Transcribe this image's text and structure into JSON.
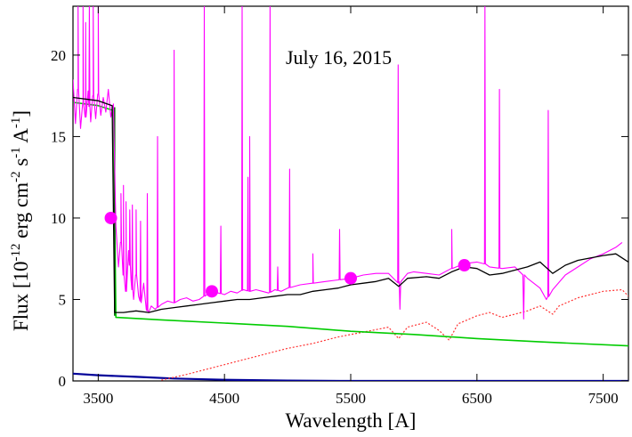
{
  "chart_data": {
    "type": "line",
    "title": "July 16, 2015",
    "xlabel": "Wavelength [A]",
    "ylabel_parts": {
      "main": "Flux [10",
      "exp1": "-12",
      "mid1": " erg cm",
      "exp2": "-2",
      "mid2": " s",
      "exp3": "-1",
      "mid3": " A",
      "exp4": "-1",
      "end": "]"
    },
    "xlim": [
      3300,
      7700
    ],
    "ylim": [
      0,
      23
    ],
    "xticks": [
      3500,
      4500,
      5500,
      6500,
      7500
    ],
    "yticks": [
      0,
      5,
      10,
      15,
      20
    ],
    "colors": {
      "observed": "#ff00ff",
      "model_total": "#000000",
      "hot_component": "#00cc00",
      "dark_green_edge": "#006400",
      "cool_giant": "#ff3333",
      "dust_component": "#000099",
      "photometry": "#ff00ff"
    },
    "series": [
      {
        "key": "hot_component",
        "points": [
          [
            3300,
            17.1
          ],
          [
            3500,
            16.9
          ],
          [
            3620,
            16.6
          ],
          [
            3640,
            3.9
          ],
          [
            4000,
            3.75
          ],
          [
            4500,
            3.55
          ],
          [
            5000,
            3.35
          ],
          [
            5500,
            3.05
          ],
          [
            6000,
            2.85
          ],
          [
            6500,
            2.6
          ],
          [
            7000,
            2.4
          ],
          [
            7700,
            2.15
          ]
        ]
      },
      {
        "key": "dust_component",
        "points": [
          [
            3300,
            0.45
          ],
          [
            3500,
            0.35
          ],
          [
            3800,
            0.25
          ],
          [
            4100,
            0.15
          ],
          [
            4500,
            0.07
          ],
          [
            5000,
            0.02
          ],
          [
            5500,
            0.0
          ],
          [
            7700,
            0.0
          ]
        ]
      },
      {
        "key": "cool_giant",
        "points": [
          [
            4000,
            0.05
          ],
          [
            4200,
            0.4
          ],
          [
            4400,
            0.8
          ],
          [
            4600,
            1.2
          ],
          [
            4800,
            1.6
          ],
          [
            5000,
            2.0
          ],
          [
            5200,
            2.3
          ],
          [
            5400,
            2.7
          ],
          [
            5600,
            3.0
          ],
          [
            5800,
            3.3
          ],
          [
            5880,
            2.6
          ],
          [
            5950,
            3.3
          ],
          [
            6100,
            3.6
          ],
          [
            6200,
            3.1
          ],
          [
            6280,
            2.5
          ],
          [
            6350,
            3.5
          ],
          [
            6500,
            4.0
          ],
          [
            6600,
            4.2
          ],
          [
            6700,
            3.9
          ],
          [
            6800,
            4.1
          ],
          [
            6900,
            4.3
          ],
          [
            7000,
            4.6
          ],
          [
            7100,
            4.1
          ],
          [
            7150,
            4.6
          ],
          [
            7300,
            5.1
          ],
          [
            7500,
            5.5
          ],
          [
            7650,
            5.6
          ],
          [
            7700,
            5.2
          ]
        ]
      },
      {
        "key": "model_total",
        "points": [
          [
            3300,
            17.4
          ],
          [
            3500,
            17.2
          ],
          [
            3610,
            16.9
          ],
          [
            3630,
            4.2
          ],
          [
            3700,
            4.2
          ],
          [
            3800,
            4.3
          ],
          [
            3900,
            4.2
          ],
          [
            4000,
            4.4
          ],
          [
            4100,
            4.5
          ],
          [
            4200,
            4.6
          ],
          [
            4300,
            4.7
          ],
          [
            4400,
            4.8
          ],
          [
            4500,
            4.9
          ],
          [
            4600,
            5.0
          ],
          [
            4700,
            5.0
          ],
          [
            4800,
            5.1
          ],
          [
            4900,
            5.2
          ],
          [
            5000,
            5.3
          ],
          [
            5100,
            5.3
          ],
          [
            5200,
            5.5
          ],
          [
            5300,
            5.6
          ],
          [
            5400,
            5.7
          ],
          [
            5500,
            5.9
          ],
          [
            5600,
            6.0
          ],
          [
            5700,
            6.1
          ],
          [
            5800,
            6.3
          ],
          [
            5880,
            5.8
          ],
          [
            5950,
            6.3
          ],
          [
            6100,
            6.4
          ],
          [
            6200,
            6.3
          ],
          [
            6300,
            6.7
          ],
          [
            6400,
            7.0
          ],
          [
            6500,
            6.9
          ],
          [
            6600,
            6.5
          ],
          [
            6700,
            6.6
          ],
          [
            6800,
            6.8
          ],
          [
            6900,
            7.0
          ],
          [
            7000,
            7.3
          ],
          [
            7100,
            6.6
          ],
          [
            7200,
            7.1
          ],
          [
            7300,
            7.4
          ],
          [
            7500,
            7.7
          ],
          [
            7600,
            7.8
          ],
          [
            7700,
            7.3
          ]
        ]
      },
      {
        "key": "observed",
        "points": [
          [
            3300,
            18.5
          ],
          [
            3320,
            15.8
          ],
          [
            3340,
            17.9
          ],
          [
            3360,
            15.5
          ],
          [
            3380,
            17.0
          ],
          [
            3400,
            16.2
          ],
          [
            3420,
            17.8
          ],
          [
            3440,
            15.9
          ],
          [
            3460,
            17.5
          ],
          [
            3480,
            16.1
          ],
          [
            3500,
            17.6
          ],
          [
            3520,
            16.3
          ],
          [
            3540,
            17.4
          ],
          [
            3560,
            16.5
          ],
          [
            3580,
            17.9
          ],
          [
            3600,
            16.2
          ],
          [
            3620,
            17.0
          ],
          [
            3640,
            9.5
          ],
          [
            3660,
            7.0
          ],
          [
            3680,
            8.5
          ],
          [
            3700,
            6.5
          ],
          [
            3720,
            5.5
          ],
          [
            3740,
            8.0
          ],
          [
            3760,
            6.2
          ],
          [
            3780,
            5.0
          ],
          [
            3800,
            6.5
          ],
          [
            3820,
            5.2
          ],
          [
            3840,
            4.8
          ],
          [
            3860,
            6.0
          ],
          [
            3880,
            4.4
          ],
          [
            3900,
            4.2
          ],
          [
            3920,
            4.6
          ],
          [
            3950,
            4.4
          ],
          [
            4000,
            4.7
          ],
          [
            4050,
            4.9
          ],
          [
            4100,
            4.8
          ],
          [
            4150,
            5.0
          ],
          [
            4200,
            5.1
          ],
          [
            4250,
            4.9
          ],
          [
            4300,
            5.0
          ],
          [
            4380,
            5.4
          ],
          [
            4450,
            5.4
          ],
          [
            4500,
            5.3
          ],
          [
            4550,
            5.5
          ],
          [
            4600,
            5.4
          ],
          [
            4650,
            5.6
          ],
          [
            4700,
            5.5
          ],
          [
            4750,
            5.6
          ],
          [
            4800,
            5.5
          ],
          [
            4850,
            5.4
          ],
          [
            4900,
            5.6
          ],
          [
            4950,
            5.5
          ],
          [
            5000,
            5.7
          ],
          [
            5100,
            5.9
          ],
          [
            5200,
            6.0
          ],
          [
            5300,
            6.1
          ],
          [
            5400,
            6.2
          ],
          [
            5500,
            6.3
          ],
          [
            5600,
            6.5
          ],
          [
            5700,
            6.6
          ],
          [
            5800,
            6.6
          ],
          [
            5880,
            6.0
          ],
          [
            5950,
            6.6
          ],
          [
            6000,
            6.7
          ],
          [
            6100,
            6.6
          ],
          [
            6200,
            6.5
          ],
          [
            6300,
            6.9
          ],
          [
            6400,
            7.2
          ],
          [
            6500,
            7.3
          ],
          [
            6560,
            7.2
          ],
          [
            6600,
            7.0
          ],
          [
            6700,
            6.9
          ],
          [
            6800,
            7.0
          ],
          [
            6900,
            6.3
          ],
          [
            7000,
            5.7
          ],
          [
            7050,
            5.0
          ],
          [
            7100,
            5.6
          ],
          [
            7200,
            6.5
          ],
          [
            7300,
            7.0
          ],
          [
            7400,
            7.5
          ],
          [
            7500,
            7.8
          ],
          [
            7600,
            8.2
          ],
          [
            7650,
            8.5
          ]
        ]
      }
    ],
    "emission_lines": [
      [
        3340,
        23
      ],
      [
        3380,
        23
      ],
      [
        3400,
        22
      ],
      [
        3430,
        23
      ],
      [
        3460,
        23
      ],
      [
        3500,
        23
      ],
      [
        3680,
        11.5
      ],
      [
        3700,
        12.0
      ],
      [
        3720,
        11.0
      ],
      [
        3750,
        10.5
      ],
      [
        3770,
        10.8
      ],
      [
        3800,
        10.5
      ],
      [
        3835,
        9.8
      ],
      [
        3889,
        11.5
      ],
      [
        3970,
        15.0
      ],
      [
        4101,
        20.3
      ],
      [
        4340,
        23
      ],
      [
        4471,
        9.5
      ],
      [
        4640,
        23
      ],
      [
        4686,
        12.5
      ],
      [
        4700,
        15.0
      ],
      [
        4861,
        23
      ],
      [
        4922,
        7.0
      ],
      [
        5016,
        13.0
      ],
      [
        5200,
        7.8
      ],
      [
        5412,
        9.3
      ],
      [
        5876,
        19.4
      ],
      [
        6300,
        9.3
      ],
      [
        6563,
        23
      ],
      [
        6678,
        17.9
      ],
      [
        7065,
        16.6
      ]
    ],
    "absorption_dips": [
      [
        6870,
        5.0
      ],
      [
        5890,
        5.6
      ]
    ],
    "photometry": [
      {
        "x": 3600,
        "y": 10.0
      },
      {
        "x": 4400,
        "y": 5.5
      },
      {
        "x": 5500,
        "y": 6.3
      },
      {
        "x": 6400,
        "y": 7.1
      }
    ]
  }
}
